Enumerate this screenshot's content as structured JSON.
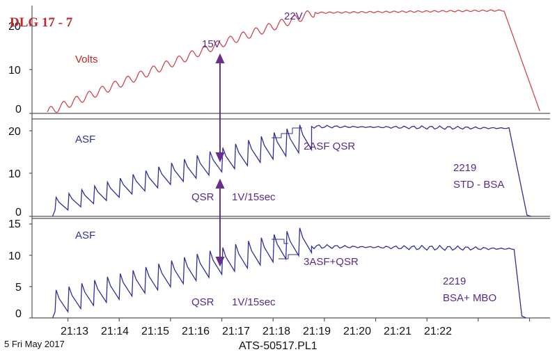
{
  "chart_data": {
    "type": "line",
    "title": "DLG 17 - 7",
    "footer_left": "5 Fri May 2017",
    "footer_center": "ATS-50517.PL1",
    "x_tick_labels": [
      "21:13",
      "21:14",
      "21:15",
      "21:16",
      "21:17",
      "21:18",
      "21:19",
      "21:20",
      "21:21",
      "21:22"
    ],
    "x_range": [
      "21:12.3",
      "21:22.4"
    ],
    "colors": {
      "volts": "#d0474d",
      "asf": "#2f2f9a",
      "purple": "#6a2e8e",
      "axis": "#555555",
      "title": "#c0272d"
    },
    "panels": [
      {
        "label": "Volts",
        "y_ticks": [
          "20",
          "10",
          "0"
        ],
        "ylim": [
          0,
          22
        ],
        "series": {
          "type": "ramp",
          "t": [
            12.6,
            16.0,
            17.8,
            21.5,
            22.2
          ],
          "v": [
            0.3,
            15,
            21.5,
            22,
            0.5
          ],
          "ripple": 0.9
        },
        "annotations": [
          "22V",
          "15V"
        ]
      },
      {
        "label": "ASF",
        "y_ticks": [
          "20",
          "10",
          "0"
        ],
        "ylim": [
          0,
          23
        ],
        "series": {
          "type": "pulsed",
          "t_start": 12.75,
          "t_charge_end": 17.75,
          "t_cutoff": 21.65,
          "t_end": 21.95,
          "base_start": 1.5,
          "base_end": 16.5,
          "peak_start": 4.5,
          "peak_end": 22.5,
          "hold_level": 21.2
        },
        "annotations": [
          "2ASF QSR",
          "QSR",
          "1V/15sec",
          "2219",
          "STD - BSA"
        ]
      },
      {
        "label": "ASF",
        "y_ticks": [
          "15",
          "10",
          "5",
          "0"
        ],
        "ylim": [
          0,
          16
        ],
        "series": {
          "type": "pulsed",
          "t_start": 12.75,
          "t_charge_end": 17.75,
          "t_cutoff": 21.75,
          "t_end": 21.85,
          "base_start": 1.0,
          "base_end": 11.0,
          "peak_start": 4.5,
          "peak_end": 15.0,
          "hold_level": 11.5
        },
        "annotations": [
          "3ASF+QSR",
          "QSR",
          "1V/15sec",
          "2219",
          "BSA+ MBO"
        ]
      }
    ]
  }
}
